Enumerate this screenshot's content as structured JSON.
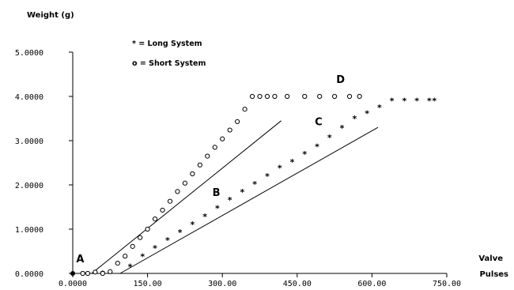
{
  "chart_data": {
    "type": "scatter",
    "ylabel": "Weight (g)",
    "xlabel_line1": "Valve",
    "xlabel_line2": "Pulses",
    "xlim": [
      0,
      750
    ],
    "ylim": [
      0,
      5
    ],
    "x_ticks": [
      {
        "value": 0,
        "label": "0.0000"
      },
      {
        "value": 150,
        "label": "150.00"
      },
      {
        "value": 300,
        "label": "300.00"
      },
      {
        "value": 450,
        "label": "450.00"
      },
      {
        "value": 600,
        "label": "600.00"
      },
      {
        "value": 750,
        "label": "750.00"
      }
    ],
    "y_ticks": [
      {
        "value": 0,
        "label": "0.0000"
      },
      {
        "value": 1,
        "label": "1.0000"
      },
      {
        "value": 2,
        "label": "2.0000"
      },
      {
        "value": 3,
        "label": "3.0000"
      },
      {
        "value": 4,
        "label": "4.0000"
      },
      {
        "value": 5,
        "label": "5.0000"
      }
    ],
    "legend": [
      {
        "symbol": "*",
        "label": "* = Long System"
      },
      {
        "symbol": "o",
        "label": "o = Short System"
      }
    ],
    "series": [
      {
        "name": "Long System",
        "marker": "*",
        "x": [
          60,
          115,
          140,
          165,
          190,
          215,
          240,
          265,
          290,
          315,
          340,
          365,
          390,
          415,
          440,
          465,
          490,
          515,
          540,
          565,
          590,
          615,
          640,
          665,
          690,
          715,
          725
        ],
        "y": [
          0.0,
          0.15,
          0.38,
          0.57,
          0.75,
          0.93,
          1.11,
          1.29,
          1.47,
          1.66,
          1.84,
          2.02,
          2.2,
          2.38,
          2.52,
          2.7,
          2.87,
          3.07,
          3.29,
          3.5,
          3.62,
          3.75,
          3.9,
          3.9,
          3.9,
          3.9,
          3.9
        ]
      },
      {
        "name": "Short System",
        "marker": "o",
        "x": [
          20,
          30,
          45,
          60,
          75,
          90,
          105,
          120,
          135,
          150,
          165,
          180,
          195,
          210,
          225,
          240,
          255,
          270,
          285,
          300,
          315,
          330,
          345,
          360,
          375,
          390,
          405,
          430,
          465,
          495,
          525,
          555,
          575
        ],
        "y": [
          0.0,
          0.0,
          0.03,
          0.0,
          0.04,
          0.23,
          0.39,
          0.61,
          0.81,
          1.0,
          1.23,
          1.43,
          1.63,
          1.85,
          2.04,
          2.25,
          2.45,
          2.65,
          2.85,
          3.04,
          3.24,
          3.43,
          3.71,
          4.0,
          4.0,
          4.0,
          4.0,
          4.0,
          4.0,
          4.0,
          4.0,
          4.0,
          4.0
        ]
      }
    ],
    "fit_lines": [
      {
        "from": [
          38,
          0.0
        ],
        "to": [
          418,
          3.45
        ]
      },
      {
        "from": [
          95,
          0.0
        ],
        "to": [
          612,
          3.3
        ]
      }
    ],
    "origin_point": [
      0,
      0
    ],
    "annotations": [
      {
        "text": "A",
        "x": 15,
        "y": 0.25
      },
      {
        "text": "B",
        "x": 288,
        "y": 1.75
      },
      {
        "text": "C",
        "x": 493,
        "y": 3.35
      },
      {
        "text": "D",
        "x": 537,
        "y": 4.3
      }
    ],
    "grid": false
  }
}
